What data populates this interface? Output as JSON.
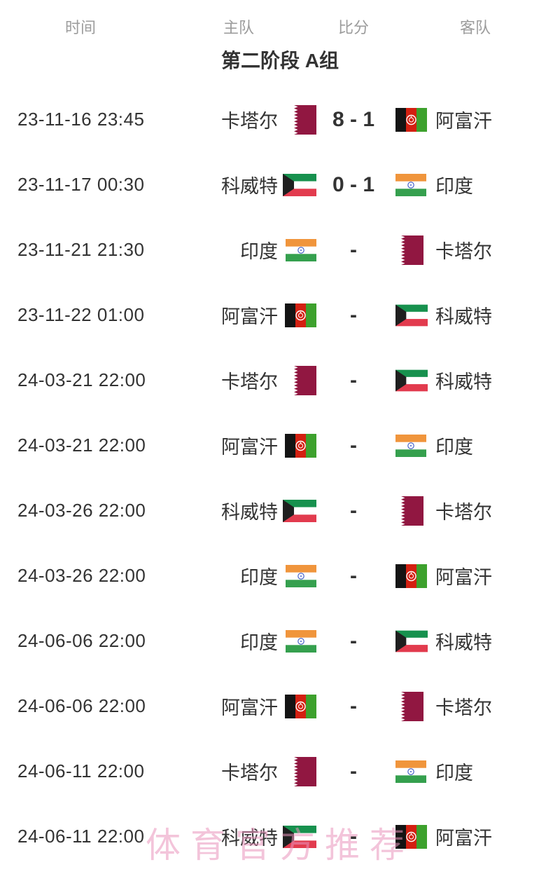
{
  "header": {
    "columns": [
      "时间",
      "主队",
      "比分",
      "客队"
    ]
  },
  "group_title": "第二阶段 A组",
  "watermark": "体育官方推荐",
  "colors": {
    "text": "#333333",
    "header_gray": "#9c9c9c",
    "watermark_pink": "#f3b2c8",
    "qatar_maroon": "#911741",
    "kuwait_green": "#17914e",
    "kuwait_red": "#e23b4e",
    "kuwait_black": "#1f1f1f",
    "india_saffron": "#f0953c",
    "india_green": "#35a04e",
    "india_chakra": "#3a57c4",
    "afghan_black": "#141414",
    "afghan_red": "#d32011",
    "afghan_green": "#3da12d"
  },
  "rows": [
    {
      "time": "23-11-16 23:45",
      "home": "卡塔尔",
      "home_flag": "qatar",
      "score": "8 - 1",
      "away": "阿富汗",
      "away_flag": "afghanistan"
    },
    {
      "time": "23-11-17 00:30",
      "home": "科威特",
      "home_flag": "kuwait",
      "score": "0 - 1",
      "away": "印度",
      "away_flag": "india"
    },
    {
      "time": "23-11-21 21:30",
      "home": "印度",
      "home_flag": "india",
      "score": "-",
      "away": "卡塔尔",
      "away_flag": "qatar"
    },
    {
      "time": "23-11-22 01:00",
      "home": "阿富汗",
      "home_flag": "afghanistan",
      "score": "-",
      "away": "科威特",
      "away_flag": "kuwait"
    },
    {
      "time": "24-03-21 22:00",
      "home": "卡塔尔",
      "home_flag": "qatar",
      "score": "-",
      "away": "科威特",
      "away_flag": "kuwait"
    },
    {
      "time": "24-03-21 22:00",
      "home": "阿富汗",
      "home_flag": "afghanistan",
      "score": "-",
      "away": "印度",
      "away_flag": "india"
    },
    {
      "time": "24-03-26 22:00",
      "home": "科威特",
      "home_flag": "kuwait",
      "score": "-",
      "away": "卡塔尔",
      "away_flag": "qatar"
    },
    {
      "time": "24-03-26 22:00",
      "home": "印度",
      "home_flag": "india",
      "score": "-",
      "away": "阿富汗",
      "away_flag": "afghanistan"
    },
    {
      "time": "24-06-06 22:00",
      "home": "印度",
      "home_flag": "india",
      "score": "-",
      "away": "科威特",
      "away_flag": "kuwait"
    },
    {
      "time": "24-06-06 22:00",
      "home": "阿富汗",
      "home_flag": "afghanistan",
      "score": "-",
      "away": "卡塔尔",
      "away_flag": "qatar"
    },
    {
      "time": "24-06-11 22:00",
      "home": "卡塔尔",
      "home_flag": "qatar",
      "score": "-",
      "away": "印度",
      "away_flag": "india"
    },
    {
      "time": "24-06-11 22:00",
      "home": "科威特",
      "home_flag": "kuwait",
      "score": "-",
      "away": "阿富汗",
      "away_flag": "afghanistan"
    }
  ]
}
